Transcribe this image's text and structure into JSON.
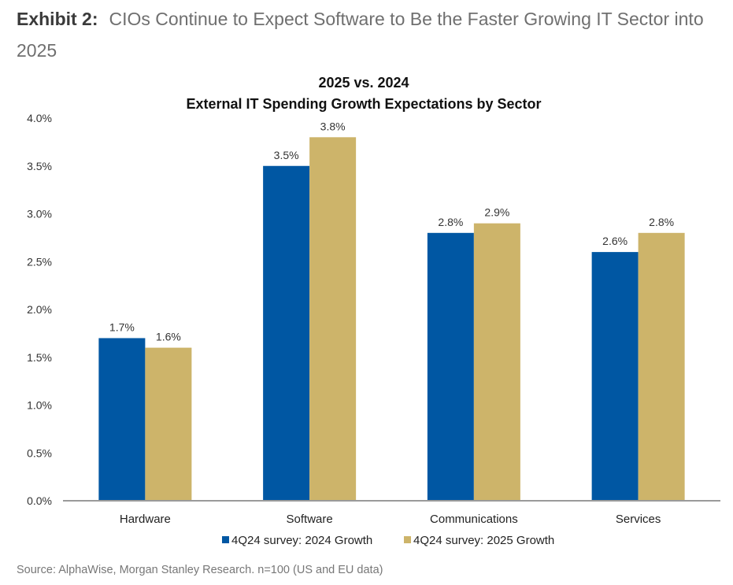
{
  "exhibit": {
    "label": "Exhibit 2:",
    "title": "CIOs Continue to Expect Software to Be the Faster Growing IT Sector into 2025"
  },
  "source": "Source: AlphaWise, Morgan Stanley Research. n=100 (US and EU data)",
  "colors": {
    "series_2024": "#0057A3",
    "series_2025": "#CDB46A",
    "axis": "#9a9a9a"
  },
  "chart_data": {
    "type": "bar",
    "title": "2025 vs. 2024",
    "subtitle": "External IT Spending Growth Expectations by Sector",
    "xlabel": "",
    "ylabel": "",
    "categories": [
      "Hardware",
      "Software",
      "Communications",
      "Services"
    ],
    "series": [
      {
        "name": "4Q24 survey: 2024 Growth",
        "values": [
          1.7,
          3.5,
          2.8,
          2.6
        ],
        "labels": [
          "1.7%",
          "3.5%",
          "2.8%",
          "2.6%"
        ]
      },
      {
        "name": "4Q24 survey: 2025 Growth",
        "values": [
          1.6,
          3.8,
          2.9,
          2.8
        ],
        "labels": [
          "1.6%",
          "3.8%",
          "2.9%",
          "2.8%"
        ]
      }
    ],
    "ylim": [
      0,
      4.0
    ],
    "yticks": [
      "0.0%",
      "0.5%",
      "1.0%",
      "1.5%",
      "2.0%",
      "2.5%",
      "3.0%",
      "3.5%",
      "4.0%"
    ],
    "grid": false,
    "legend": "bottom"
  }
}
